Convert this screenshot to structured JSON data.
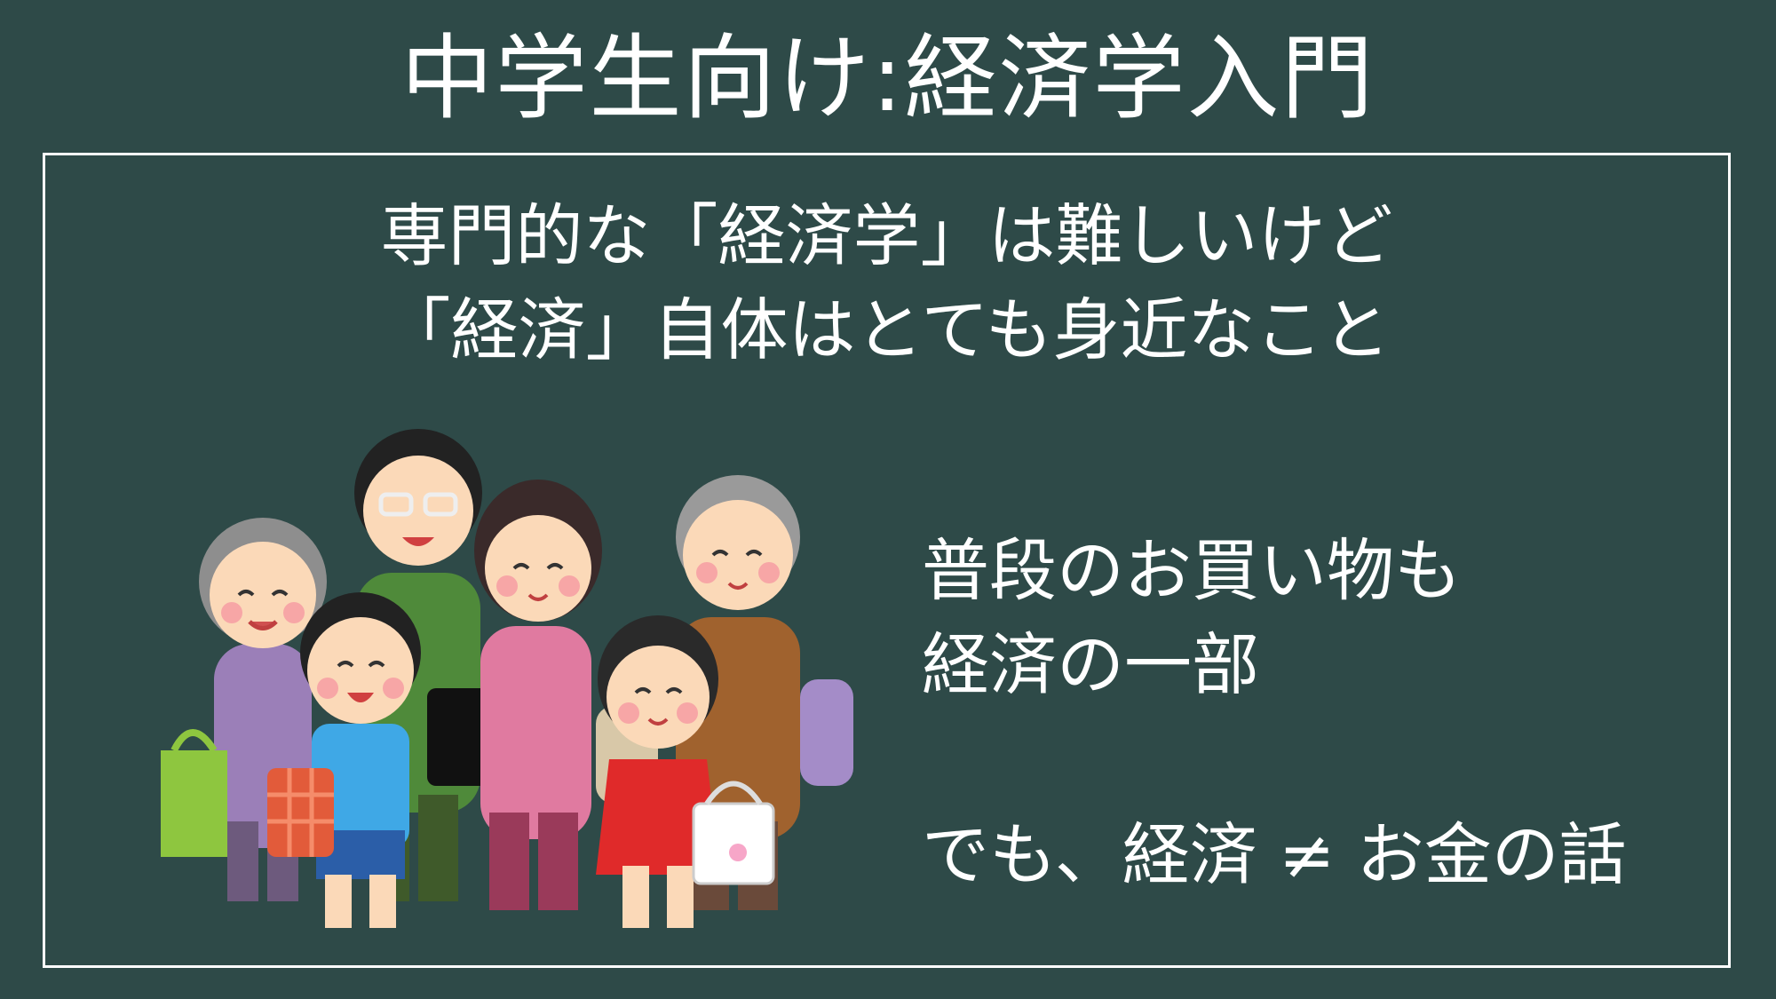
{
  "title": "中学生向け:経済学入門",
  "lead": {
    "line1": "専門的な「経済学」は難しいけど",
    "line2": "「経済」自体はとても身近なこと"
  },
  "side": {
    "line1": "普段のお買い物も",
    "line2": "経済の一部",
    "line3": "でも、経済 ≠ お金の話"
  },
  "illustration": {
    "colors": {
      "background": "#2e4a48",
      "skin": "#fbd9b8",
      "cheek": "#f7a6a6",
      "hair_dark": "#2a2a2a",
      "hair_gray": "#9a9a9a"
    }
  }
}
